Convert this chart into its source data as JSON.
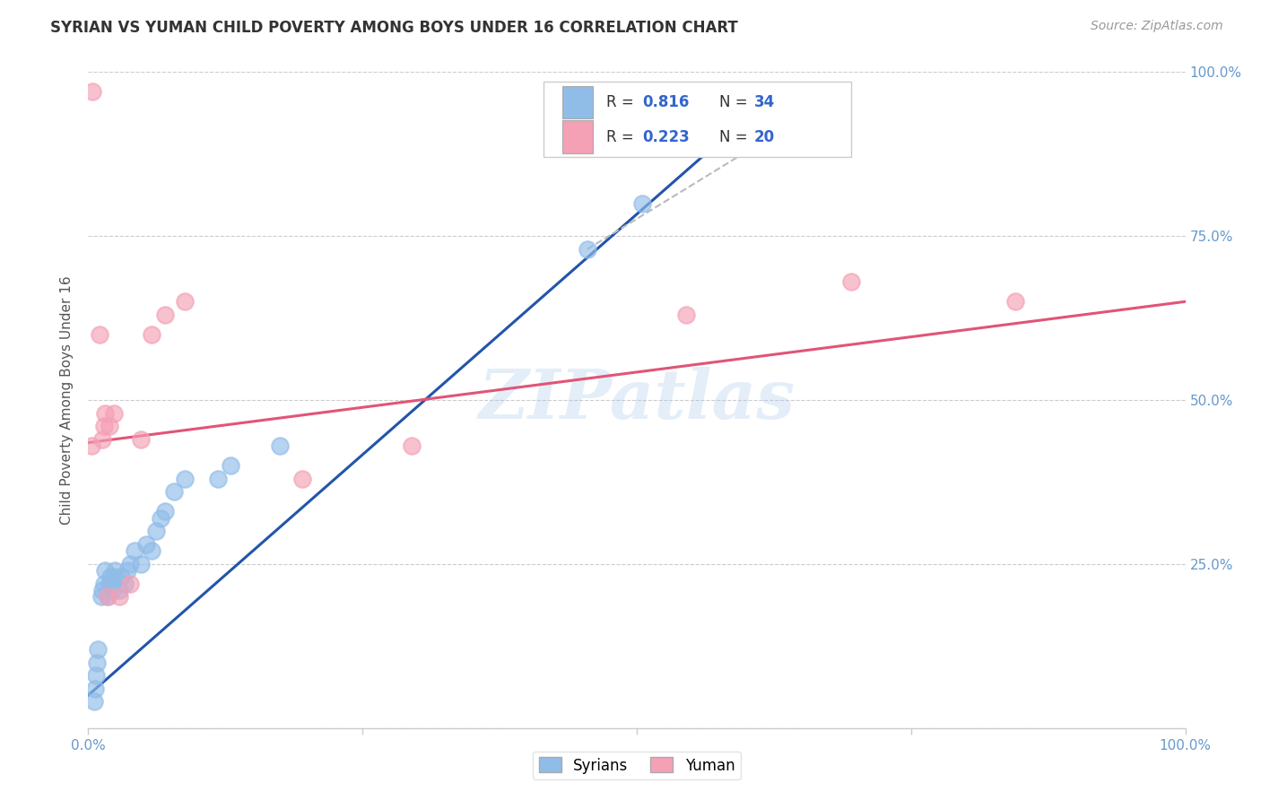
{
  "title": "SYRIAN VS YUMAN CHILD POVERTY AMONG BOYS UNDER 16 CORRELATION CHART",
  "source": "Source: ZipAtlas.com",
  "ylabel": "Child Poverty Among Boys Under 16",
  "xlim": [
    0,
    1.0
  ],
  "ylim": [
    0,
    1.0
  ],
  "xtick_labels": [
    "0.0%",
    "",
    "",
    "",
    "100.0%"
  ],
  "xtick_values": [
    0.0,
    0.25,
    0.5,
    0.75,
    1.0
  ],
  "ytick_values": [
    0.0,
    0.25,
    0.5,
    0.75,
    1.0
  ],
  "right_ytick_values": [
    0.25,
    0.5,
    0.75,
    1.0
  ],
  "right_ytick_labels": [
    "25.0%",
    "50.0%",
    "75.0%",
    "100.0%"
  ],
  "watermark": "ZIPatlas",
  "legend_r_syrians": "R = 0.816",
  "legend_n_syrians": "N = 34",
  "legend_r_yuman": "R = 0.223",
  "legend_n_yuman": "N = 20",
  "syrians_color": "#90BCE8",
  "yuman_color": "#F4A0B5",
  "syrians_line_color": "#2255AA",
  "yuman_line_color": "#E05575",
  "dashed_line_color": "#BBBBBB",
  "background_color": "#FFFFFF",
  "grid_color": "#CCCCCC",
  "tick_color": "#6699CC",
  "syrians_x": [
    0.005,
    0.006,
    0.007,
    0.008,
    0.009,
    0.012,
    0.013,
    0.014,
    0.015,
    0.018,
    0.019,
    0.02,
    0.022,
    0.023,
    0.024,
    0.028,
    0.03,
    0.033,
    0.036,
    0.038,
    0.042,
    0.048,
    0.053,
    0.058,
    0.062,
    0.066,
    0.07,
    0.078,
    0.088,
    0.118,
    0.13,
    0.175,
    0.455,
    0.505
  ],
  "syrians_y": [
    0.04,
    0.06,
    0.08,
    0.1,
    0.12,
    0.2,
    0.21,
    0.22,
    0.24,
    0.2,
    0.22,
    0.23,
    0.21,
    0.23,
    0.24,
    0.21,
    0.23,
    0.22,
    0.24,
    0.25,
    0.27,
    0.25,
    0.28,
    0.27,
    0.3,
    0.32,
    0.33,
    0.36,
    0.38,
    0.38,
    0.4,
    0.43,
    0.73,
    0.8
  ],
  "yuman_x": [
    0.003,
    0.004,
    0.01,
    0.013,
    0.014,
    0.015,
    0.018,
    0.019,
    0.023,
    0.028,
    0.038,
    0.048,
    0.058,
    0.07,
    0.088,
    0.195,
    0.295,
    0.545,
    0.695,
    0.845
  ],
  "yuman_y": [
    0.43,
    0.97,
    0.6,
    0.44,
    0.46,
    0.48,
    0.2,
    0.46,
    0.48,
    0.2,
    0.22,
    0.44,
    0.6,
    0.63,
    0.65,
    0.38,
    0.43,
    0.63,
    0.68,
    0.65
  ],
  "syrians_trendline_x": [
    0.0,
    0.6
  ],
  "syrians_trendline_y": [
    0.05,
    0.93
  ],
  "yuman_trendline_x": [
    0.0,
    1.0
  ],
  "yuman_trendline_y": [
    0.435,
    0.65
  ],
  "dashed_line_x": [
    0.455,
    0.65
  ],
  "dashed_line_y": [
    0.73,
    0.93
  ]
}
